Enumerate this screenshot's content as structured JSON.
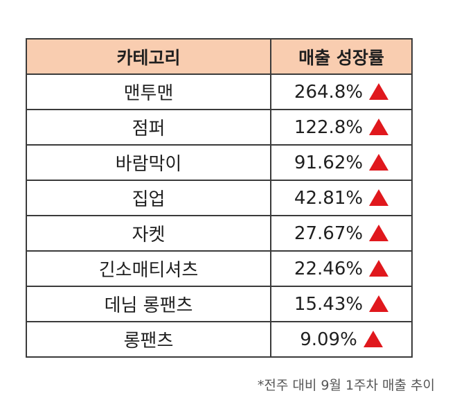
{
  "table": {
    "headers": [
      "카테고리",
      "매출 성장률"
    ],
    "rows": [
      {
        "category": "맨투맨",
        "growth": "264.8%"
      },
      {
        "category": "점퍼",
        "growth": "122.8%"
      },
      {
        "category": "바람막이",
        "growth": "91.62%"
      },
      {
        "category": "집업",
        "growth": "42.81%"
      },
      {
        "category": "자켓",
        "growth": "27.67%"
      },
      {
        "category": "긴소매티셔츠",
        "growth": "22.46%"
      },
      {
        "category": "데님 롱팬츠",
        "growth": "15.43%"
      },
      {
        "category": "롱팬츠",
        "growth": "9.09%"
      }
    ],
    "arrow_icon": "up-triangle-icon",
    "arrow_color": "#e0181d",
    "header_color": "#f9cdb0"
  },
  "footnote": "*전주 대비 9월 1주차 매출 추이",
  "chart_data": {
    "type": "table",
    "columns": [
      "카테고리",
      "매출 성장률"
    ],
    "categories": [
      "맨투맨",
      "점퍼",
      "바람막이",
      "집업",
      "자켓",
      "긴소매티셔츠",
      "데님 롱팬츠",
      "롱팬츠"
    ],
    "values": [
      264.8,
      122.8,
      91.62,
      42.81,
      27.67,
      22.46,
      15.43,
      9.09
    ],
    "annotations": [
      "*전주 대비 9월 1주차 매출 추이"
    ]
  }
}
